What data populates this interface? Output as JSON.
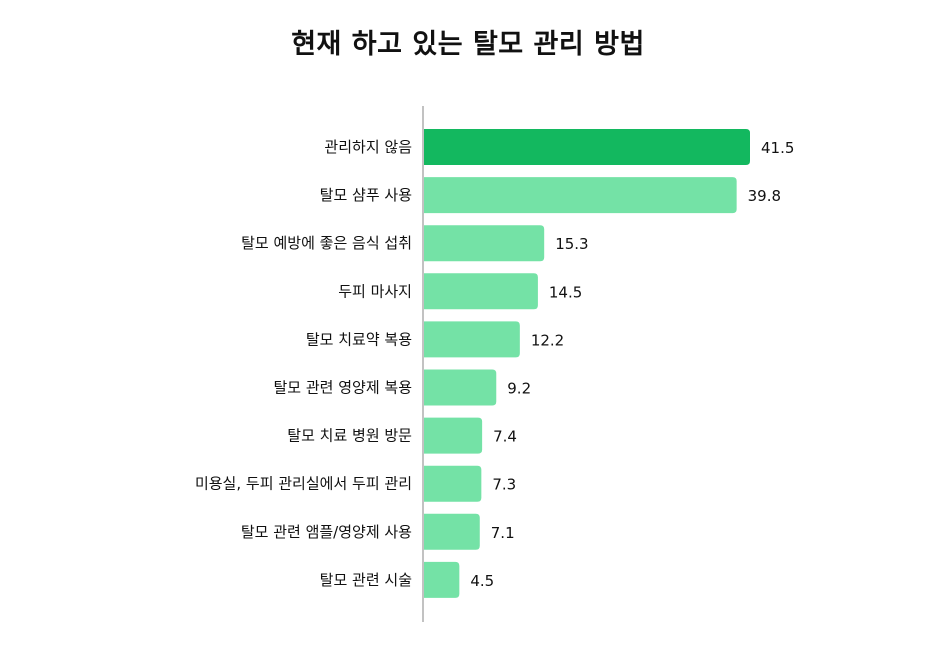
{
  "colors": {
    "highlight": "#13b85f",
    "bar": "#74e2a6",
    "axis": "#9a9a9a"
  },
  "chart_data": {
    "type": "bar",
    "orientation": "horizontal",
    "title": "현재 하고 있는 탈모 관리 방법",
    "categories": [
      "관리하지 않음",
      "탈모 샴푸 사용",
      "탈모 예방에 좋은 음식 섭취",
      "두피 마사지",
      "탈모 치료약 복용",
      "탈모 관련 영양제 복용",
      "탈모 치료 병원 방문",
      "미용실, 두피 관리실에서 두피 관리",
      "탈모 관련 앰플/영양제 사용",
      "탈모 관련 시술"
    ],
    "values": [
      41.5,
      39.8,
      15.3,
      14.5,
      12.2,
      9.2,
      7.4,
      7.3,
      7.1,
      4.5
    ],
    "value_labels": [
      "41.5",
      "39.8",
      "15.3",
      "14.5",
      "12.2",
      "9.2",
      "7.4",
      "7.3",
      "7.1",
      "4.5"
    ],
    "highlight_index": 0,
    "xlim": [
      0,
      41.5
    ],
    "grid": false,
    "legend": "none"
  }
}
